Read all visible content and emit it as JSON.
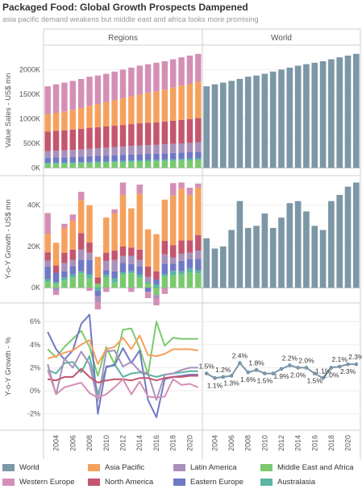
{
  "title": "Packaged Food: Global Growth Prospects Dampened",
  "subtitle": "asia pacific demand weakens but middle east and africa looks more promising",
  "chart_data": {
    "type": "bar",
    "columns": [
      "Regions",
      "World"
    ],
    "x": [
      2003,
      2004,
      2005,
      2006,
      2007,
      2008,
      2009,
      2010,
      2011,
      2012,
      2013,
      2014,
      2015,
      2016,
      2017,
      2018,
      2019,
      2020,
      2021
    ],
    "x_ticks": [
      "2004",
      "2006",
      "2008",
      "2010",
      "2012",
      "2014",
      "2016",
      "2018",
      "2020"
    ],
    "colors": {
      "World": "#7c97a6",
      "Asia Pacific": "#f5a15d",
      "Latin America": "#a991bb",
      "Middle East and Africa": "#7bc96f",
      "Western Europe": "#d48fb6",
      "North America": "#c4566e",
      "Eastern Europe": "#6f79c4",
      "Australasia": "#5bb5a2"
    },
    "legend": [
      "World",
      "Asia Pacific",
      "Latin America",
      "Middle East and Africa",
      "Western Europe",
      "North America",
      "Eastern Europe",
      "Australasia"
    ],
    "stack_order": [
      "Middle East and Africa",
      "Australasia",
      "Eastern Europe",
      "Latin America",
      "North America",
      "Asia Pacific",
      "Western Europe"
    ],
    "panels": [
      {
        "id": "value",
        "ylabel": "Value Sales - US$ mn",
        "ylim": [
          -60,
          2400
        ],
        "yticks": [
          0,
          500,
          1000,
          1500,
          2000
        ],
        "yticklabels": [
          "0K",
          "500K",
          "1000K",
          "1500K",
          "2000K"
        ],
        "world": [
          1660,
          1700,
          1735,
          1770,
          1810,
          1855,
          1880,
          1915,
          1960,
          2000,
          2040,
          2080,
          2110,
          2140,
          2170,
          2210,
          2250,
          2285,
          2320
        ],
        "series": {
          "Middle East and Africa": [
            80,
            82,
            84,
            86,
            90,
            94,
            98,
            103,
            108,
            113,
            118,
            123,
            128,
            133,
            138,
            143,
            148,
            153,
            160
          ],
          "Australasia": [
            25,
            26,
            26,
            27,
            27,
            28,
            28,
            29,
            30,
            30,
            31,
            31,
            32,
            32,
            33,
            33,
            34,
            34,
            35
          ],
          "Eastern Europe": [
            100,
            102,
            104,
            107,
            112,
            117,
            118,
            118,
            120,
            122,
            124,
            126,
            124,
            124,
            125,
            127,
            129,
            131,
            133
          ],
          "Latin America": [
            135,
            138,
            141,
            144,
            148,
            152,
            156,
            160,
            164,
            168,
            172,
            176,
            178,
            180,
            182,
            184,
            187,
            190,
            193
          ],
          "North America": [
            400,
            405,
            410,
            415,
            420,
            425,
            428,
            432,
            436,
            440,
            445,
            450,
            455,
            460,
            466,
            472,
            478,
            484,
            492
          ],
          "Asia Pacific": [
            350,
            368,
            385,
            402,
            422,
            448,
            470,
            496,
            520,
            545,
            566,
            590,
            610,
            630,
            650,
            675,
            700,
            720,
            740
          ],
          "Western Europe": [
            570,
            579,
            585,
            589,
            591,
            591,
            582,
            577,
            582,
            582,
            584,
            584,
            583,
            581,
            576,
            576,
            574,
            573,
            567
          ]
        }
      },
      {
        "id": "yoy",
        "ylabel": "Y-o-Y Growth - US$ mn",
        "ylim": [
          -5000,
          52000
        ],
        "yticks": [
          0,
          20000,
          40000
        ],
        "yticklabels": [
          "0K",
          "20K",
          "40K"
        ],
        "world": [
          24000,
          19000,
          20000,
          28000,
          42000,
          29000,
          30000,
          36000,
          29000,
          34000,
          41000,
          42000,
          37000,
          30000,
          28000,
          42000,
          45000,
          49000,
          51000
        ],
        "series": {
          "Middle East and Africa": [
            3000,
            2000,
            3500,
            5000,
            7000,
            4500,
            2000,
            5000,
            2500,
            6500,
            7000,
            5000,
            2000,
            -3500,
            5500,
            6000,
            6500,
            7500,
            7000
          ],
          "Australasia": [
            1200,
            800,
            1500,
            1500,
            1000,
            2000,
            -1500,
            1500,
            2000,
            1000,
            1000,
            1500,
            800,
            1500,
            1200,
            2200,
            1500,
            2000,
            1500
          ],
          "Eastern Europe": [
            6000,
            4500,
            3000,
            4000,
            5500,
            7000,
            -2500,
            2000,
            3500,
            4500,
            3500,
            4000,
            -2000,
            2500,
            5000,
            3500,
            5000,
            4500,
            5500
          ],
          "Latin America": [
            3000,
            -1500,
            4000,
            3000,
            5000,
            3500,
            -3000,
            4500,
            5500,
            3500,
            4000,
            3000,
            2500,
            -1500,
            4500,
            3000,
            3500,
            3000,
            4000
          ],
          "North America": [
            4000,
            3500,
            5000,
            5000,
            8000,
            5000,
            3000,
            4000,
            4500,
            4500,
            4000,
            5000,
            5000,
            4000,
            6500,
            6000,
            6500,
            6000,
            7500
          ],
          "Asia Pacific": [
            9000,
            11000,
            12000,
            14000,
            16000,
            18000,
            10000,
            17000,
            18000,
            25000,
            19000,
            27000,
            18000,
            18000,
            20000,
            24000,
            25000,
            22000,
            23000
          ],
          "Western Europe": [
            10000,
            -2000,
            2000,
            3000,
            4000,
            -1500,
            -3500,
            -2000,
            2000,
            6000,
            -2000,
            4500,
            -3000,
            -3500,
            -3000,
            6000,
            3000,
            3500,
            2000
          ]
        }
      },
      {
        "id": "pct",
        "ylabel": "Y-o-Y Growth - %",
        "ylim": [
          -3.0,
          7.2
        ],
        "yticks": [
          -2,
          0,
          2,
          4,
          6
        ],
        "yticklabels": [
          "-2%",
          "0%",
          "2%",
          "4%",
          "6%"
        ],
        "world": [
          1.5,
          1.1,
          1.2,
          1.3,
          2.4,
          1.6,
          1.8,
          1.5,
          1.5,
          1.9,
          2.2,
          2.0,
          2.0,
          1.5,
          1.1,
          2.0,
          2.1,
          2.3,
          2.3
        ],
        "world_labels": [
          "1.5%",
          "1.1%",
          "1.2%",
          "1.3%",
          "2.4%",
          "1.6%",
          "1.8%",
          "1.5%",
          "",
          "1.9%",
          "2.2%",
          "2.0%",
          "2.0%",
          "1.5%",
          "1.1%",
          "2.0%",
          "2.1%",
          "2.3%",
          "2.3%"
        ],
        "series": {
          "Middle East and Africa": [
            3.6,
            2.9,
            3.8,
            4.5,
            5.2,
            3.8,
            1.3,
            3.8,
            2.3,
            5.3,
            5.4,
            3.7,
            1.4,
            6.0,
            3.9,
            4.6,
            4.5,
            4.5,
            4.5
          ],
          "Australasia": [
            1.8,
            1.5,
            2.4,
            2.5,
            1.6,
            3.0,
            -0.3,
            2.0,
            2.3,
            1.2,
            1.5,
            1.6,
            1.4,
            1.2,
            1.4,
            1.5,
            1.6,
            1.7,
            1.7
          ],
          "Eastern Europe": [
            5.1,
            3.6,
            2.7,
            3.5,
            5.8,
            6.6,
            -2.0,
            2.1,
            2.2,
            3.7,
            2.4,
            3.5,
            -0.8,
            -2.3,
            1.0,
            1.2,
            1.3,
            1.4,
            1.4
          ],
          "Latin America": [
            2.3,
            -0.3,
            2.8,
            2.0,
            3.4,
            2.3,
            -0.9,
            3.4,
            3.5,
            2.1,
            2.5,
            1.7,
            1.5,
            -0.8,
            1.4,
            1.5,
            1.8,
            2.0,
            2.0
          ],
          "North America": [
            1.0,
            0.9,
            1.2,
            1.2,
            1.9,
            1.2,
            0.7,
            0.9,
            1.0,
            1.0,
            0.9,
            1.1,
            1.1,
            0.9,
            1.1,
            1.2,
            1.2,
            1.3,
            1.3
          ],
          "Asia Pacific": [
            2.8,
            3.0,
            3.3,
            3.5,
            4.0,
            4.4,
            2.3,
            3.6,
            3.8,
            4.6,
            3.6,
            4.8,
            3.1,
            3.0,
            3.2,
            3.6,
            3.6,
            3.6,
            3.5
          ],
          "Western Europe": [
            1.8,
            -0.3,
            0.3,
            0.5,
            0.7,
            -0.2,
            -0.6,
            -0.3,
            0.3,
            1.0,
            -0.3,
            0.8,
            -0.5,
            -0.6,
            -0.5,
            1.0,
            0.5,
            0.6,
            0.3
          ]
        }
      }
    ]
  }
}
